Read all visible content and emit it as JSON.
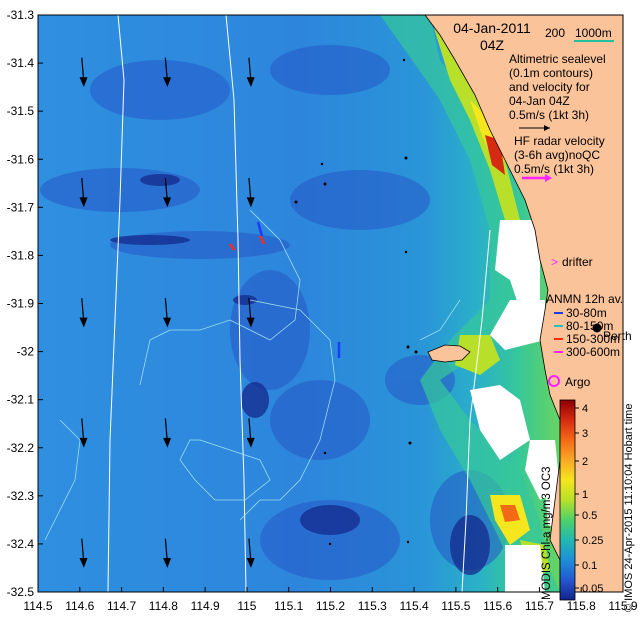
{
  "map": {
    "date": "04-Jan-2011",
    "time": "04Z",
    "scale_label_200": "200",
    "scale_label_1000": "1000m",
    "altimetric_text": [
      "Altimetric sealevel",
      "(0.1m contours)",
      "and velocity for",
      "04-Jan 04Z",
      "0.5m/s (1kt 3h)"
    ],
    "hf_text": [
      "HF radar velocity",
      "(3-6h avg)noQC",
      "0.5m/s (1kt 3h)"
    ],
    "drifter_label": "drifter",
    "anmn_title": "ANMN 12h av.",
    "anmn_items": [
      {
        "label": "30-80m",
        "color": "#1a3cff"
      },
      {
        "label": "80-150m",
        "color": "#22c0c0"
      },
      {
        "label": "150-300m",
        "color": "#ff2a10"
      },
      {
        "label": "300-600m",
        "color": "#ff22ff"
      }
    ],
    "argo_label": "Argo",
    "city_label": "Perth",
    "colorbar_label": "MODIS Chl-a mg/m3 OC3",
    "credit": "© IMOS 24-Apr-2015 11:10:04 Hobart time",
    "colorbar_ticks": [
      "4",
      "3",
      "2",
      "1",
      "0.5",
      "0.25",
      "0.1",
      "0.05"
    ]
  },
  "chart_data": {
    "type": "heatmap",
    "x_ticks": [
      "114.5",
      "114.6",
      "114.7",
      "114.8",
      "114.9",
      "115",
      "115.1",
      "115.2",
      "115.3",
      "115.4",
      "115.5",
      "115.6",
      "115.7",
      "115.8",
      "115.9"
    ],
    "y_ticks": [
      "-31.3",
      "-31.4",
      "-31.5",
      "-31.6",
      "-31.7",
      "-31.8",
      "-31.9",
      "-32",
      "-32.1",
      "-32.2",
      "-32.3",
      "-32.4",
      "-32.5"
    ],
    "xlim": [
      114.5,
      115.9
    ],
    "ylim": [
      -32.5,
      -31.3
    ],
    "colorbar_colors": [
      "#8b0000",
      "#d72a12",
      "#f36a16",
      "#f9a825",
      "#f5e61e",
      "#b8e02a",
      "#4fd06a",
      "#22b8b0",
      "#1d8ed8",
      "#2556d0",
      "#14248a"
    ]
  }
}
